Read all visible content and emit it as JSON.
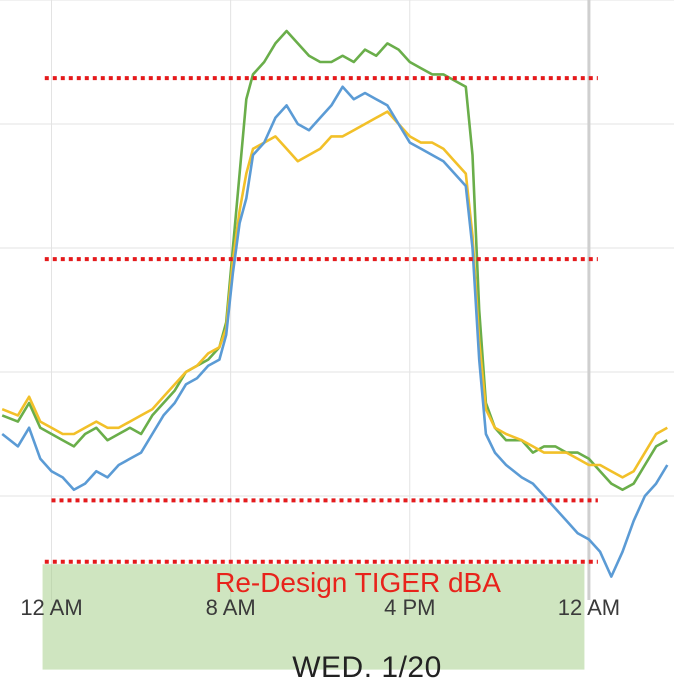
{
  "chart_data": {
    "type": "line",
    "title": "",
    "xlabel": "",
    "ylabel": "",
    "x_ticks": [
      "12 AM",
      "8 AM",
      "4 PM",
      "12 AM"
    ],
    "x_tick_hours": [
      0,
      8,
      16,
      24
    ],
    "xlim": [
      -2.3,
      27.8
    ],
    "ylim": [
      0,
      100
    ],
    "y_gridlines": [
      20,
      40,
      60,
      80,
      100
    ],
    "caption": "WED. 1/20",
    "band": {
      "label": "Re-Design TIGER dBA",
      "from_hour": -0.4,
      "to_hour": 23.8,
      "y_from": -8,
      "y_to": 9,
      "color": "#a8d08d"
    },
    "reference_lines": [
      {
        "y": 87.4,
        "from_hour": -0.3,
        "to_hour": 24.4,
        "color": "#e41a1c"
      },
      {
        "y": 58.2,
        "from_hour": -0.3,
        "to_hour": 24.4,
        "color": "#e41a1c"
      },
      {
        "y": 19.3,
        "from_hour": 0,
        "to_hour": 24.4,
        "color": "#e41a1c"
      },
      {
        "y": 9.4,
        "from_hour": -0.3,
        "to_hour": 24.4,
        "color": "#e41a1c"
      }
    ],
    "series": [
      {
        "color": "#6aae4a",
        "x": [
          -2.2,
          -1.5,
          -1,
          -0.5,
          0,
          0.5,
          1,
          1.5,
          2,
          2.5,
          3,
          3.5,
          4,
          4.5,
          5,
          5.5,
          6,
          6.5,
          7,
          7.5,
          7.8,
          8.1,
          8.4,
          8.7,
          9,
          9.5,
          10,
          10.5,
          11,
          11.5,
          12,
          12.5,
          13,
          13.5,
          14,
          14.5,
          15,
          15.5,
          16,
          16.5,
          17,
          17.5,
          18,
          18.5,
          18.8,
          19.1,
          19.4,
          19.8,
          20.3,
          21,
          21.5,
          22,
          22.5,
          23,
          23.5,
          24,
          24.5,
          25,
          25.5,
          26,
          26.5,
          27,
          27.5
        ],
        "y": [
          33,
          32,
          35,
          31,
          30,
          29,
          28,
          30,
          31,
          29,
          30,
          31,
          30,
          33,
          35,
          37,
          40,
          41,
          42,
          44,
          48,
          60,
          72,
          84,
          88,
          90,
          93,
          95,
          93,
          91,
          90,
          90,
          91,
          90,
          92,
          91,
          93,
          92,
          90,
          89,
          88,
          88,
          87,
          86,
          75,
          50,
          35,
          31,
          29,
          29,
          27,
          28,
          28,
          27,
          27,
          26,
          24,
          22,
          21,
          22,
          25,
          28,
          29
        ]
      },
      {
        "color": "#f2c029",
        "x": [
          -2.2,
          -1.5,
          -1,
          -0.5,
          0,
          0.5,
          1,
          1.5,
          2,
          2.5,
          3,
          3.5,
          4,
          4.5,
          5,
          5.5,
          6,
          6.5,
          7,
          7.5,
          7.8,
          8.1,
          8.4,
          8.7,
          9,
          9.5,
          10,
          10.5,
          11,
          11.5,
          12,
          12.5,
          13,
          13.5,
          14,
          14.5,
          15,
          15.5,
          16,
          16.5,
          17,
          17.5,
          18,
          18.5,
          18.8,
          19.1,
          19.4,
          19.8,
          20.3,
          21,
          21.5,
          22,
          22.5,
          23,
          23.5,
          24,
          24.5,
          25,
          25.5,
          26,
          26.5,
          27,
          27.5
        ],
        "y": [
          34,
          33,
          36,
          32,
          31,
          30,
          30,
          31,
          32,
          31,
          31,
          32,
          33,
          34,
          36,
          38,
          40,
          41,
          43,
          44,
          47,
          58,
          66,
          72,
          76,
          77,
          78,
          76,
          74,
          75,
          76,
          78,
          78,
          79,
          80,
          81,
          82,
          80,
          78,
          77,
          77,
          76,
          74,
          72,
          62,
          45,
          34,
          31,
          30,
          29,
          28,
          27,
          27,
          27,
          26,
          25,
          25,
          24,
          23,
          24,
          27,
          30,
          31
        ]
      },
      {
        "color": "#5b9bd5",
        "x": [
          -2.2,
          -1.5,
          -1,
          -0.5,
          0,
          0.5,
          1,
          1.5,
          2,
          2.5,
          3,
          3.5,
          4,
          4.5,
          5,
          5.5,
          6,
          6.5,
          7,
          7.5,
          7.8,
          8.1,
          8.4,
          8.7,
          9,
          9.5,
          10,
          10.5,
          11,
          11.5,
          12,
          12.5,
          13,
          13.5,
          14,
          14.5,
          15,
          15.5,
          16,
          16.5,
          17,
          17.5,
          18,
          18.5,
          18.8,
          19.1,
          19.4,
          19.8,
          20.3,
          21,
          21.5,
          22,
          22.5,
          23,
          23.5,
          24,
          24.5,
          25,
          25.5,
          26,
          26.5,
          27,
          27.5
        ],
        "y": [
          30,
          28,
          31,
          26,
          24,
          23,
          21,
          22,
          24,
          23,
          25,
          26,
          27,
          30,
          33,
          35,
          38,
          39,
          41,
          42,
          46,
          56,
          64,
          68,
          75,
          77,
          81,
          83,
          80,
          79,
          81,
          83,
          86,
          84,
          85,
          84,
          83,
          80,
          77,
          76,
          75,
          74,
          72,
          70,
          60,
          42,
          30,
          27,
          25,
          23,
          22,
          20,
          18,
          16,
          14,
          13,
          11,
          7,
          11,
          16,
          20,
          22,
          25
        ]
      }
    ]
  }
}
